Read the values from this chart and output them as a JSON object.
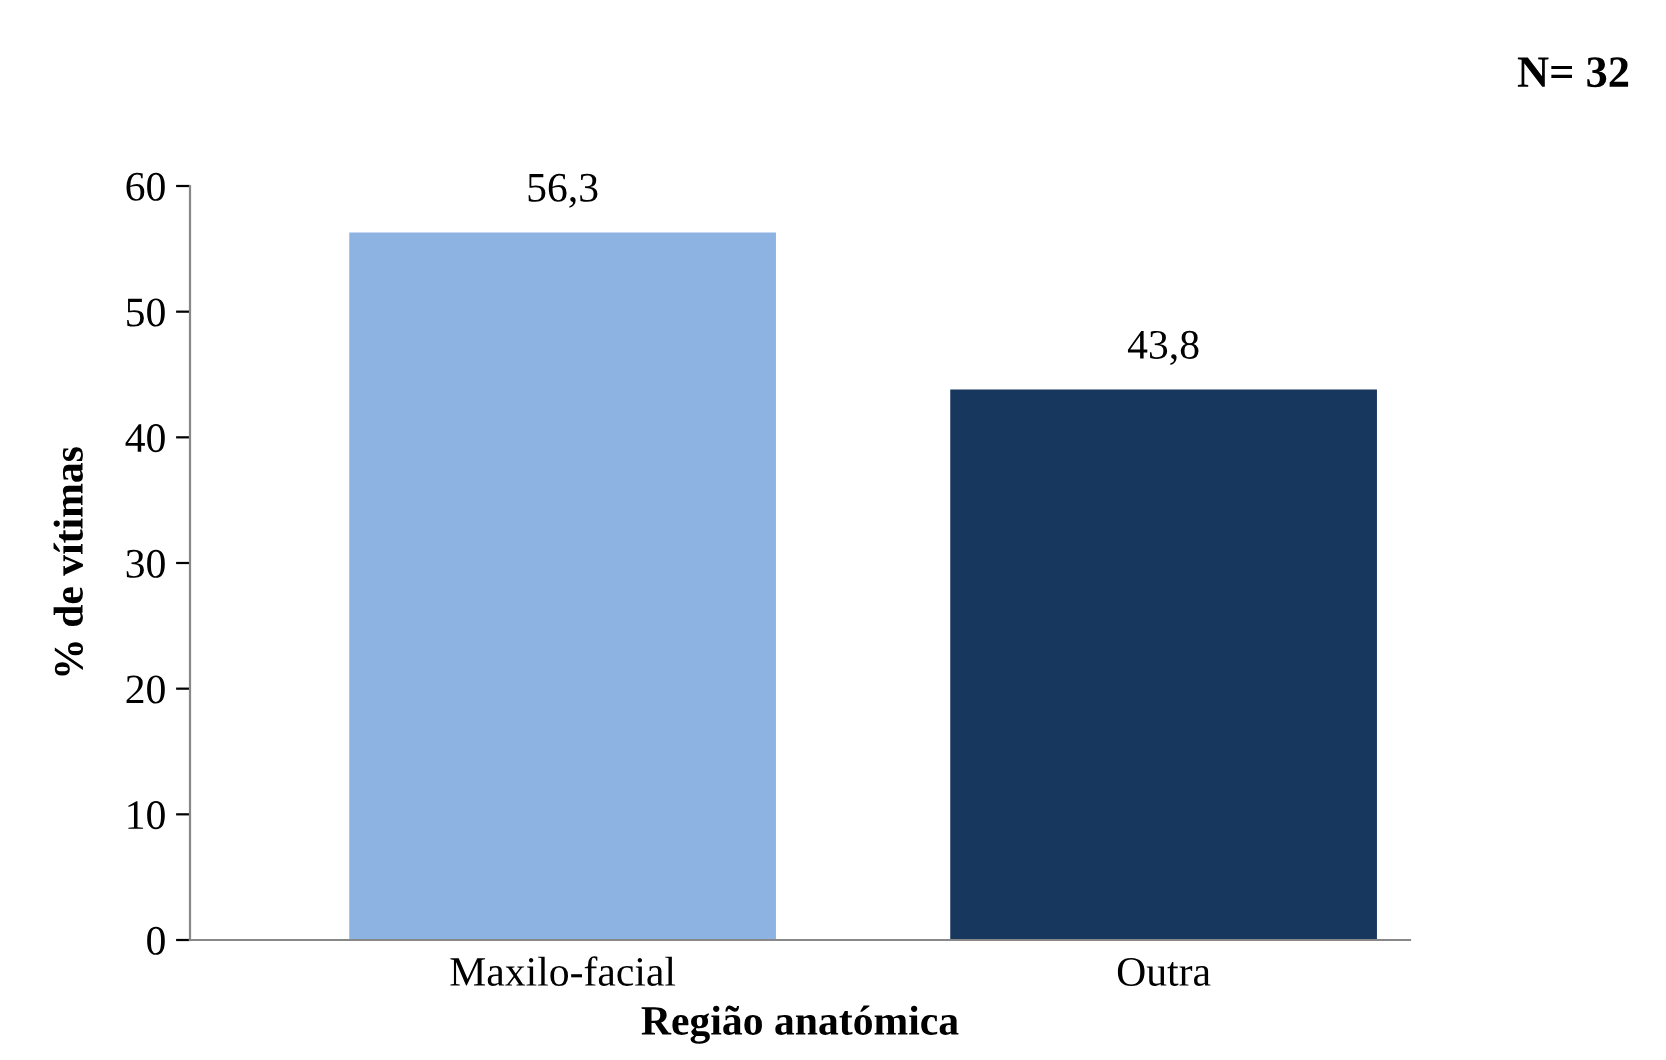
{
  "chart_data": {
    "type": "bar",
    "xlabel": "Região anatómica",
    "ylabel": "% de vítimas",
    "categories": [
      "Maxilo-facial",
      "Outra"
    ],
    "values": [
      56.3,
      43.8
    ],
    "colors": [
      "#8db3e2",
      "#17375e"
    ],
    "value_labels": [
      "56,3",
      "43,8"
    ],
    "ylim": [
      0,
      60
    ],
    "yticks": [
      0,
      10,
      20,
      30,
      40,
      50,
      60
    ],
    "grid": false,
    "legend": false,
    "annotations": [
      "N= 32"
    ]
  }
}
